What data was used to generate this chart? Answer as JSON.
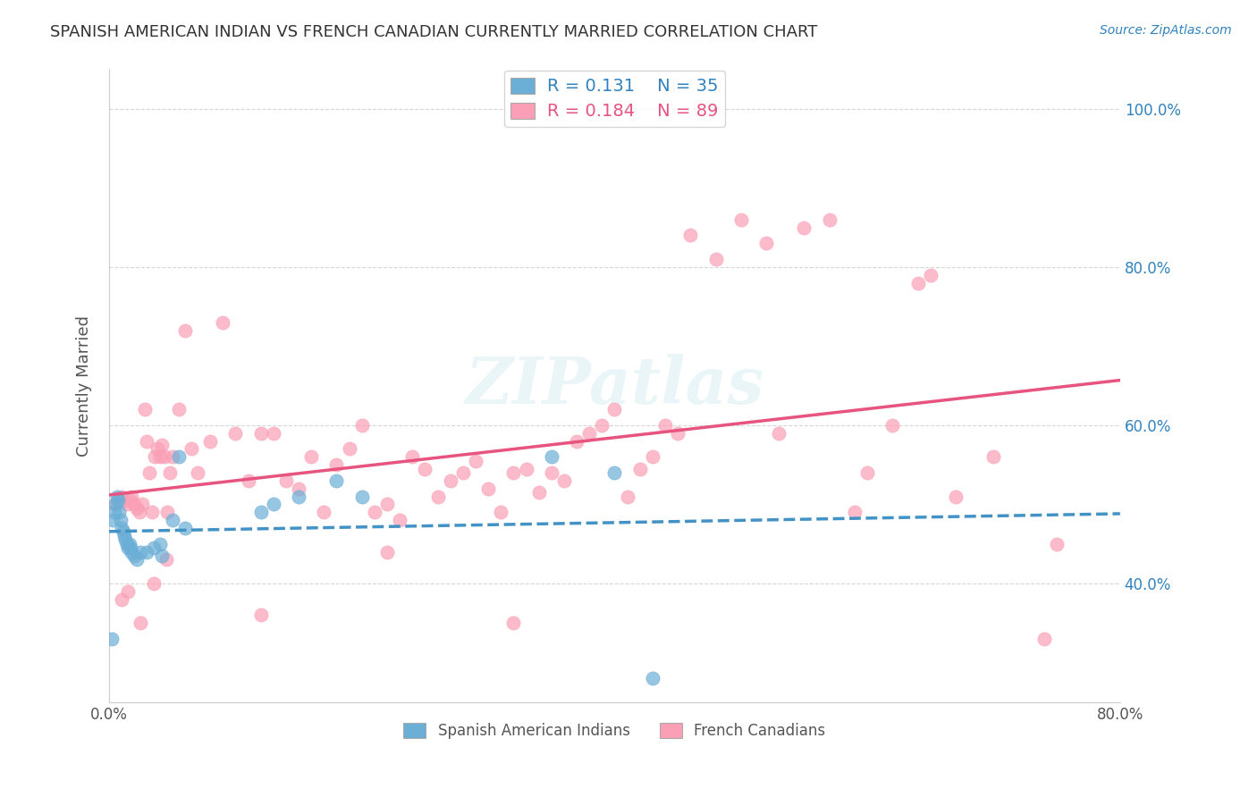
{
  "title": "SPANISH AMERICAN INDIAN VS FRENCH CANADIAN CURRENTLY MARRIED CORRELATION CHART",
  "source": "Source: ZipAtlas.com",
  "xlabel_ticks": [
    "0.0%",
    "80.0%"
  ],
  "ylabel_label": "Currently Married",
  "ylabel_ticks": [
    "40.0%",
    "60.0%",
    "80.0%",
    "100.0%"
  ],
  "xlim": [
    0.0,
    0.8
  ],
  "ylim": [
    0.25,
    1.05
  ],
  "legend_r1": "R = 0.131",
  "legend_n1": "N = 35",
  "legend_r2": "R = 0.184",
  "legend_n2": "N = 89",
  "color_blue": "#6baed6",
  "color_pink": "#fa9fb5",
  "color_blue_line": "#4292c6",
  "color_pink_line": "#e75480",
  "color_blue_text": "#3182bd",
  "color_pink_text": "#e75480",
  "watermark": "ZIPatlas",
  "background_color": "#ffffff",
  "grid_color": "#cccccc",
  "blue_x": [
    0.002,
    0.003,
    0.004,
    0.005,
    0.006,
    0.007,
    0.008,
    0.009,
    0.01,
    0.011,
    0.012,
    0.013,
    0.014,
    0.015,
    0.016,
    0.017,
    0.018,
    0.02,
    0.022,
    0.025,
    0.03,
    0.035,
    0.04,
    0.042,
    0.05,
    0.055,
    0.06,
    0.12,
    0.13,
    0.15,
    0.18,
    0.2,
    0.35,
    0.4,
    0.43
  ],
  "blue_y": [
    0.33,
    0.48,
    0.49,
    0.5,
    0.51,
    0.505,
    0.49,
    0.48,
    0.47,
    0.465,
    0.46,
    0.455,
    0.45,
    0.445,
    0.45,
    0.445,
    0.44,
    0.435,
    0.43,
    0.44,
    0.44,
    0.445,
    0.45,
    0.435,
    0.48,
    0.56,
    0.47,
    0.49,
    0.5,
    0.51,
    0.53,
    0.51,
    0.56,
    0.54,
    0.28
  ],
  "pink_x": [
    0.005,
    0.008,
    0.01,
    0.012,
    0.014,
    0.016,
    0.018,
    0.02,
    0.022,
    0.024,
    0.026,
    0.028,
    0.03,
    0.032,
    0.034,
    0.036,
    0.038,
    0.04,
    0.042,
    0.044,
    0.046,
    0.048,
    0.05,
    0.055,
    0.06,
    0.065,
    0.07,
    0.08,
    0.09,
    0.1,
    0.11,
    0.12,
    0.13,
    0.14,
    0.15,
    0.16,
    0.17,
    0.18,
    0.19,
    0.2,
    0.21,
    0.22,
    0.23,
    0.24,
    0.25,
    0.26,
    0.27,
    0.28,
    0.29,
    0.3,
    0.31,
    0.32,
    0.33,
    0.34,
    0.35,
    0.36,
    0.37,
    0.38,
    0.39,
    0.4,
    0.41,
    0.42,
    0.43,
    0.44,
    0.45,
    0.46,
    0.48,
    0.5,
    0.52,
    0.53,
    0.55,
    0.57,
    0.59,
    0.6,
    0.62,
    0.64,
    0.65,
    0.67,
    0.7,
    0.75,
    0.01,
    0.015,
    0.025,
    0.035,
    0.045,
    0.12,
    0.22,
    0.32,
    0.74
  ],
  "pink_y": [
    0.5,
    0.505,
    0.51,
    0.505,
    0.5,
    0.505,
    0.51,
    0.5,
    0.495,
    0.49,
    0.5,
    0.62,
    0.58,
    0.54,
    0.49,
    0.56,
    0.57,
    0.56,
    0.575,
    0.56,
    0.49,
    0.54,
    0.56,
    0.62,
    0.72,
    0.57,
    0.54,
    0.58,
    0.73,
    0.59,
    0.53,
    0.59,
    0.59,
    0.53,
    0.52,
    0.56,
    0.49,
    0.55,
    0.57,
    0.6,
    0.49,
    0.5,
    0.48,
    0.56,
    0.545,
    0.51,
    0.53,
    0.54,
    0.555,
    0.52,
    0.49,
    0.54,
    0.545,
    0.515,
    0.54,
    0.53,
    0.58,
    0.59,
    0.6,
    0.62,
    0.51,
    0.545,
    0.56,
    0.6,
    0.59,
    0.84,
    0.81,
    0.86,
    0.83,
    0.59,
    0.85,
    0.86,
    0.49,
    0.54,
    0.6,
    0.78,
    0.79,
    0.51,
    0.56,
    0.45,
    0.38,
    0.39,
    0.35,
    0.4,
    0.43,
    0.36,
    0.44,
    0.35,
    0.33
  ]
}
